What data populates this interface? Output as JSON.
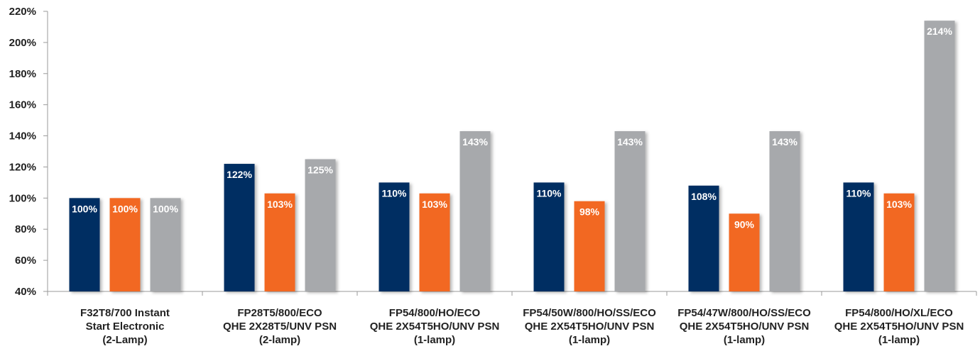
{
  "chart_data": {
    "type": "bar",
    "title": "",
    "xlabel": "",
    "ylabel": "",
    "ylim": [
      40,
      220
    ],
    "yticks": [
      40,
      60,
      80,
      100,
      120,
      140,
      160,
      180,
      200,
      220
    ],
    "ytick_labels": [
      "40%",
      "60%",
      "80%",
      "100%",
      "120%",
      "140%",
      "160%",
      "180%",
      "200%",
      "220%"
    ],
    "grid": false,
    "legend": "none",
    "categories": [
      [
        "F32T8/700 Instant",
        "Start Electronic",
        "(2-Lamp)"
      ],
      [
        "FP28T5/800/ECO",
        "QHE 2X28T5/UNV PSN",
        "(2-lamp)"
      ],
      [
        "FP54/800/HO/ECO",
        "QHE 2X54T5HO/UNV PSN",
        "(1-lamp)"
      ],
      [
        "FP54/50W/800/HO/SS/ECO",
        "QHE 2X54T5HO/UNV PSN",
        "(1-lamp)"
      ],
      [
        "FP54/47W/800/HO/SS/ECO",
        "QHE 2X54T5HO/UNV PSN",
        "(1-lamp)"
      ],
      [
        "FP54/800/HO/XL/ECO",
        "QHE 2X54T5HO/UNV PSN",
        "(1-lamp)"
      ]
    ],
    "series": [
      {
        "color": "#002d62",
        "values": [
          100,
          122,
          110,
          110,
          108,
          110
        ],
        "labels": [
          "100%",
          "122%",
          "110%",
          "110%",
          "108%",
          "110%"
        ]
      },
      {
        "color": "#f26722",
        "values": [
          100,
          103,
          103,
          98,
          90,
          103
        ],
        "labels": [
          "100%",
          "103%",
          "103%",
          "98%",
          "90%",
          "103%"
        ]
      },
      {
        "color": "#a7a9ac",
        "values": [
          100,
          125,
          143,
          143,
          143,
          214
        ],
        "labels": [
          "100%",
          "125%",
          "143%",
          "143%",
          "143%",
          "214%"
        ]
      }
    ]
  }
}
